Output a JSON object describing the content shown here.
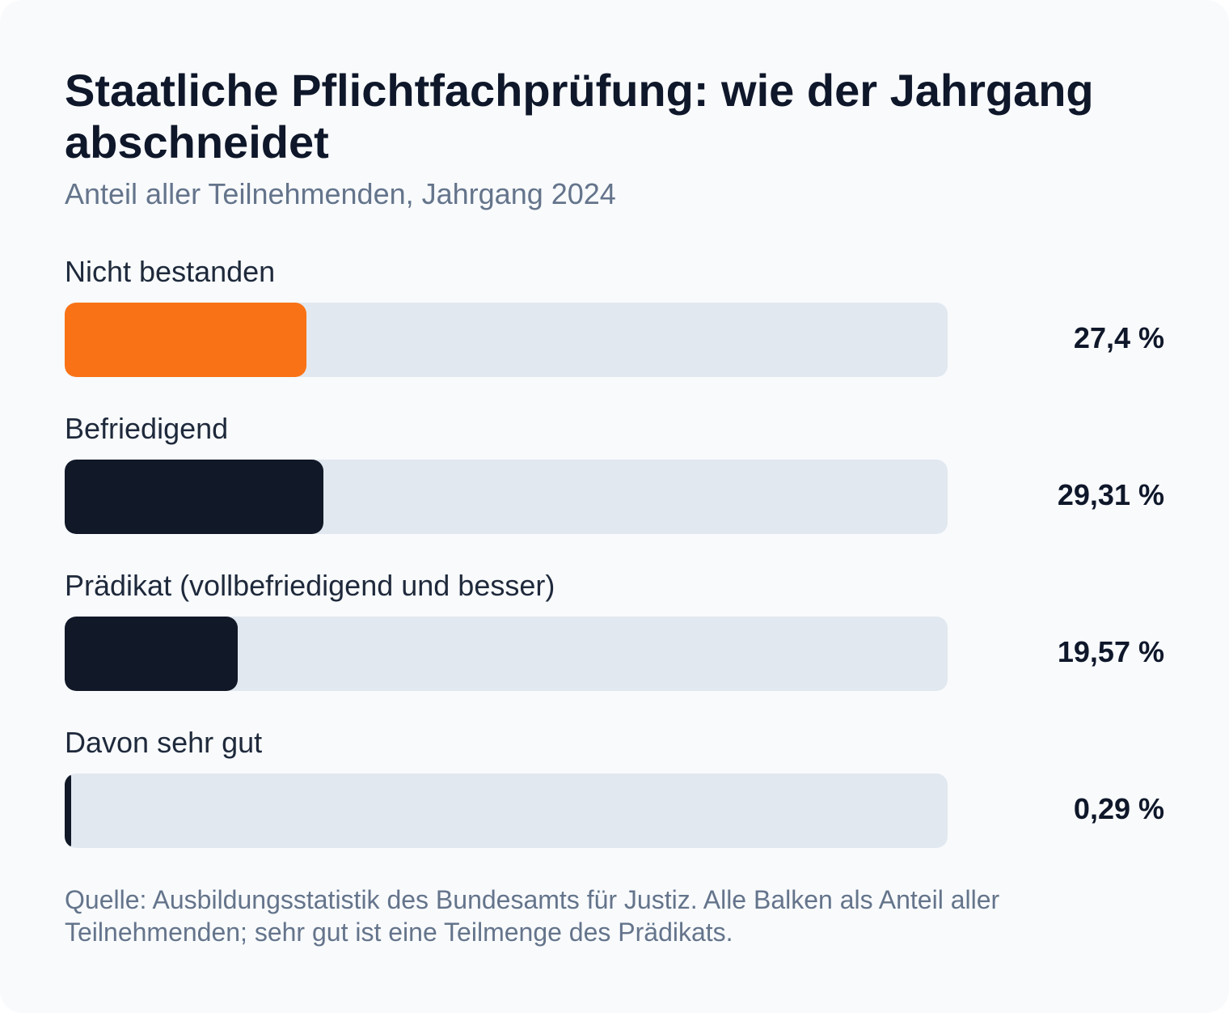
{
  "chart_data": {
    "type": "bar",
    "orientation": "horizontal",
    "title": "Staatliche Pflichtfachprüfung: wie der Jahrgang abschneidet",
    "subtitle": "Anteil aller Teilnehmenden, Jahrgang 2024",
    "categories": [
      "Nicht bestanden",
      "Befriedigend",
      "Prädikat (vollbefriedigend und besser)",
      "Davon sehr gut"
    ],
    "values": [
      27.4,
      29.31,
      19.57,
      0.29
    ],
    "value_labels": [
      "27,4 %",
      "29,31 %",
      "19,57 %",
      "0,29 %"
    ],
    "colors": [
      "#f97316",
      "#111827",
      "#111827",
      "#111827"
    ],
    "xlim": [
      0,
      100
    ],
    "grid": false,
    "legend": "none",
    "footnote": "Quelle: Ausbildungsstatistik des Bundesamts für Justiz. Alle Balken als Anteil aller Teilnehmenden; sehr gut ist eine Teilmenge des Prädikats."
  },
  "colors": {
    "background": "#f8fafc",
    "track": "#e2e8f0",
    "accent": "#f97316",
    "dark": "#111827"
  }
}
